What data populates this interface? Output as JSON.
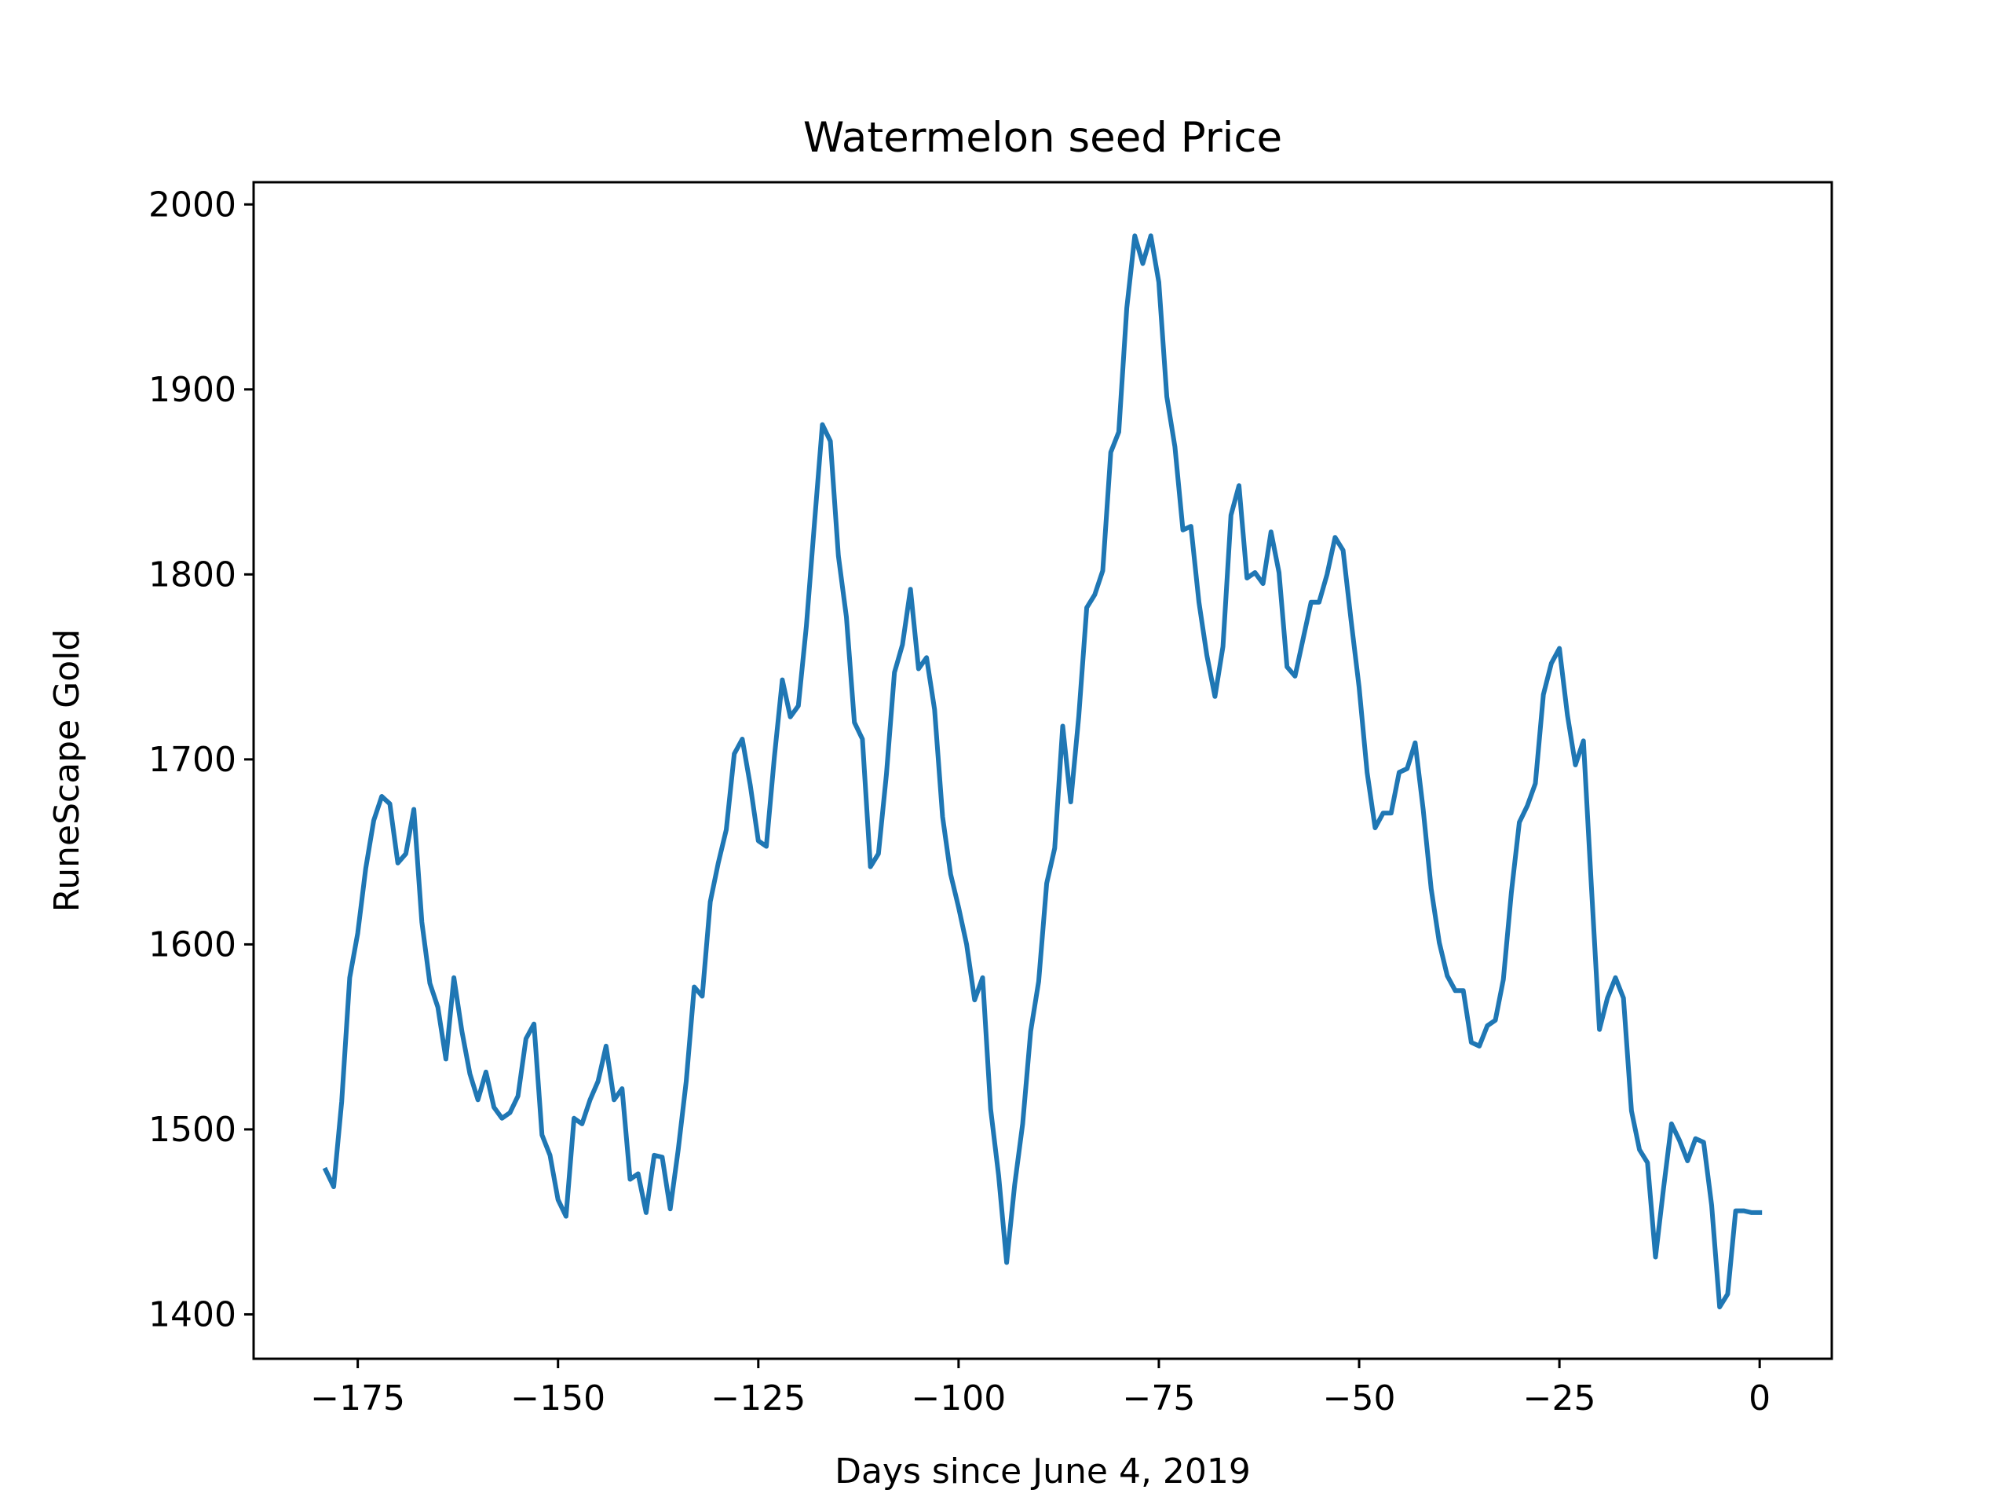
{
  "chart_data": {
    "type": "line",
    "title": "Watermelon seed Price",
    "xlabel": "Days since June 4, 2019",
    "ylabel": "RuneScape Gold",
    "xlim": [
      -188,
      9
    ],
    "ylim": [
      1376,
      2012
    ],
    "xticks": [
      -175,
      -150,
      -125,
      -100,
      -75,
      -50,
      -25,
      0
    ],
    "xtick_labels": [
      "−175",
      "−150",
      "−125",
      "−100",
      "−75",
      "−50",
      "−25",
      "0"
    ],
    "yticks": [
      1400,
      1500,
      1600,
      1700,
      1800,
      1900,
      2000
    ],
    "ytick_labels": [
      "1400",
      "1500",
      "1600",
      "1700",
      "1800",
      "1900",
      "2000"
    ],
    "grid": false,
    "legend": "none",
    "series_color": "#1f77b4",
    "series": [
      {
        "x": [
          -179,
          -178,
          -177,
          -176,
          -175,
          -174,
          -173,
          -172,
          -171,
          -170,
          -169,
          -168,
          -167,
          -166,
          -165,
          -164,
          -163,
          -162,
          -161,
          -160,
          -159,
          -158,
          -157,
          -156,
          -155,
          -154,
          -153,
          -152,
          -151,
          -150,
          -149,
          -148,
          -147,
          -146,
          -145,
          -144,
          -143,
          -142,
          -141,
          -140,
          -139,
          -138,
          -137,
          -136,
          -135,
          -134,
          -133,
          -132,
          -131,
          -130,
          -129,
          -128,
          -127,
          -126,
          -125,
          -124,
          -123,
          -122,
          -121,
          -120,
          -119,
          -118,
          -117,
          -116,
          -115,
          -114,
          -113,
          -112,
          -111,
          -110,
          -109,
          -108,
          -107,
          -106,
          -105,
          -104,
          -103,
          -102,
          -101,
          -100,
          -99,
          -98,
          -97,
          -96,
          -95,
          -94,
          -93,
          -92,
          -91,
          -90,
          -89,
          -88,
          -87,
          -86,
          -85,
          -84,
          -83,
          -82,
          -81,
          -80,
          -79,
          -78,
          -77,
          -76,
          -75,
          -74,
          -73,
          -72,
          -71,
          -70,
          -69,
          -68,
          -67,
          -66,
          -65,
          -64,
          -63,
          -62,
          -61,
          -60,
          -59,
          -58,
          -57,
          -56,
          -55,
          -54,
          -53,
          -52,
          -51,
          -50,
          -49,
          -48,
          -47,
          -46,
          -45,
          -44,
          -43,
          -42,
          -41,
          -40,
          -39,
          -38,
          -37,
          -36,
          -35,
          -34,
          -33,
          -32,
          -31,
          -30,
          -29,
          -28,
          -27,
          -26,
          -25,
          -24,
          -23,
          -22,
          -21,
          -20,
          -19,
          -18,
          -17,
          -16,
          -15,
          -14,
          -13,
          -12,
          -11,
          -10,
          -9,
          -8,
          -7,
          -6,
          -5,
          -4,
          -3,
          -2,
          -1,
          0
        ],
        "y": [
          1478,
          1469,
          1515,
          1582,
          1606,
          1641,
          1667,
          1680,
          1676,
          1644,
          1649,
          1673,
          1612,
          1579,
          1566,
          1538,
          1582,
          1553,
          1530,
          1516,
          1531,
          1512,
          1506,
          1509,
          1518,
          1549,
          1557,
          1497,
          1486,
          1462,
          1453,
          1506,
          1503,
          1516,
          1526,
          1545,
          1516,
          1522,
          1473,
          1476,
          1455,
          1486,
          1485,
          1457,
          1489,
          1526,
          1577,
          1572,
          1623,
          1644,
          1662,
          1703,
          1711,
          1686,
          1656,
          1653,
          1701,
          1743,
          1723,
          1729,
          1772,
          1827,
          1881,
          1872,
          1810,
          1777,
          1720,
          1711,
          1642,
          1649,
          1692,
          1747,
          1762,
          1792,
          1749,
          1755,
          1727,
          1669,
          1638,
          1620,
          1600,
          1570,
          1582,
          1511,
          1475,
          1428,
          1470,
          1503,
          1553,
          1580,
          1633,
          1652,
          1718,
          1677,
          1723,
          1782,
          1789,
          1802,
          1866,
          1877,
          1944,
          1983,
          1968,
          1983,
          1958,
          1896,
          1869,
          1824,
          1826,
          1785,
          1756,
          1734,
          1761,
          1832,
          1848,
          1798,
          1801,
          1795,
          1823,
          1801,
          1750,
          1745,
          1765,
          1785,
          1785,
          1800,
          1820,
          1813,
          1775,
          1739,
          1693,
          1663,
          1671,
          1671,
          1693,
          1695,
          1709,
          1673,
          1630,
          1601,
          1583,
          1575,
          1575,
          1547,
          1545,
          1556,
          1559,
          1581,
          1628,
          1666,
          1675,
          1687,
          1735,
          1752,
          1760,
          1724,
          1697,
          1710,
          1631,
          1554,
          1571,
          1582,
          1571,
          1510,
          1489,
          1482,
          1431,
          1468,
          1503,
          1494,
          1483,
          1495,
          1493,
          1459,
          1404,
          1411,
          1456,
          1456,
          1455,
          1455
        ]
      }
    ]
  }
}
